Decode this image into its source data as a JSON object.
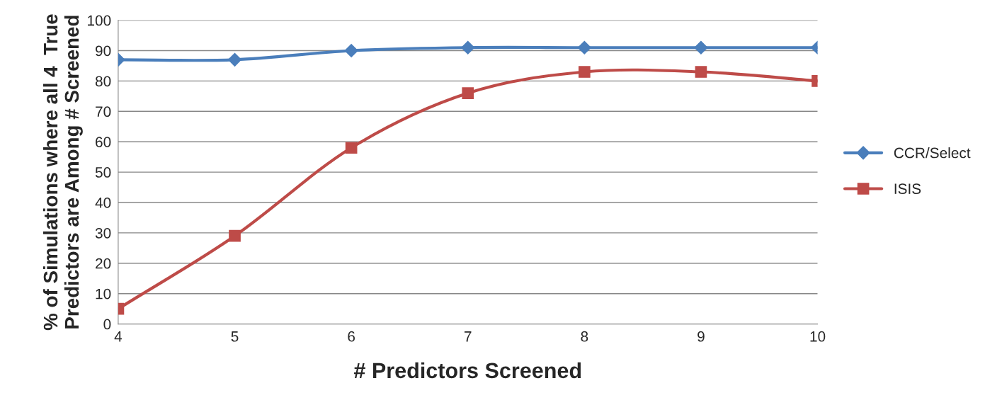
{
  "chart_data": {
    "type": "line",
    "xlabel": "# Predictors Screened",
    "ylabel": "% of Simulations where all 4  True\nPredictors are Among # Screened",
    "x": [
      4,
      5,
      6,
      7,
      8,
      9,
      10
    ],
    "series": [
      {
        "name": "CCR/Select",
        "color": "#4a7ebb",
        "marker": "diamond",
        "values": [
          87,
          87,
          90,
          91,
          91,
          91,
          91
        ]
      },
      {
        "name": "ISIS",
        "color": "#be4b48",
        "marker": "square",
        "values": [
          5,
          29,
          58,
          76,
          83,
          83,
          80
        ]
      }
    ],
    "xlim": [
      4,
      10
    ],
    "xticks": [
      4,
      5,
      6,
      7,
      8,
      9,
      10
    ],
    "ylim": [
      0,
      100
    ],
    "yticks": [
      0,
      10,
      20,
      30,
      40,
      50,
      60,
      70,
      80,
      90,
      100
    ],
    "grid": "y",
    "legend": "right",
    "line_style": "solid"
  }
}
